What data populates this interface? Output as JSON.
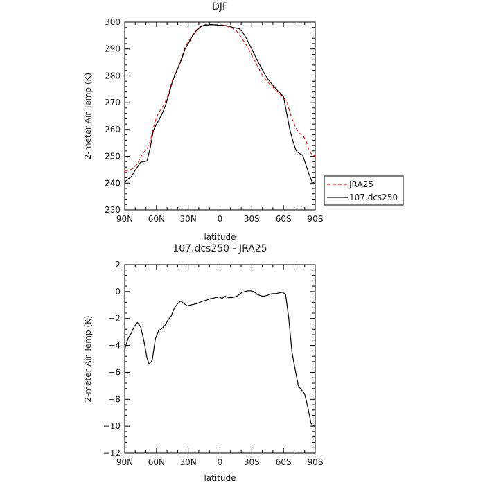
{
  "chart_data": [
    {
      "type": "line",
      "title": "DJF",
      "xlabel": "latitude",
      "ylabel": "2-meter Air Temp (K)",
      "xlim": [
        90,
        -90
      ],
      "ylim": [
        230,
        300
      ],
      "x_ticks": [
        90,
        60,
        30,
        0,
        -30,
        -60,
        -90
      ],
      "x_tick_labels": [
        "90N",
        "60N",
        "30N",
        "0",
        "30S",
        "60S",
        "90S"
      ],
      "y_ticks": [
        230,
        240,
        250,
        260,
        270,
        280,
        290,
        300
      ],
      "y_tick_labels": [
        "230",
        "240",
        "250",
        "260",
        "270",
        "280",
        "290",
        "300"
      ],
      "grid": false,
      "legend_position": "right",
      "series": [
        {
          "name": "JRA25",
          "color": "#e8231c",
          "dash": "dashed",
          "x": [
            90,
            85,
            82,
            78,
            75,
            72,
            69,
            66,
            63,
            60,
            57,
            54,
            51,
            48,
            45,
            42,
            39,
            36,
            33,
            30,
            27,
            24,
            21,
            18,
            15,
            12,
            9,
            6,
            3,
            0,
            -3,
            -6,
            -9,
            -12,
            -15,
            -18,
            -21,
            -24,
            -27,
            -30,
            -33,
            -36,
            -39,
            -42,
            -45,
            -48,
            -51,
            -54,
            -57,
            -60,
            -63,
            -66,
            -69,
            -72,
            -75,
            -78,
            -81,
            -84,
            -87,
            -90
          ],
          "y": [
            244.6,
            244.9,
            245.5,
            247.2,
            249.7,
            251.5,
            252.8,
            255.5,
            260.5,
            264.5,
            266.8,
            268.5,
            270.8,
            274.2,
            278.5,
            281.2,
            283.8,
            287.0,
            290.5,
            292.6,
            294.6,
            296.3,
            297.6,
            298.5,
            299.0,
            299.1,
            299.1,
            299.1,
            299.0,
            299.0,
            298.9,
            298.5,
            298.1,
            297.8,
            297.0,
            295.5,
            293.8,
            292.0,
            290.0,
            287.8,
            285.5,
            283.2,
            281.0,
            279.2,
            277.7,
            276.5,
            275.3,
            274.2,
            273.0,
            272.0,
            270.5,
            266.5,
            263.0,
            260.5,
            258.5,
            258.0,
            256.0,
            252.5,
            250.5,
            250.2
          ]
        },
        {
          "name": "107.dcs250",
          "color": "#000000",
          "dash": "solid",
          "x": [
            90,
            87,
            84,
            81,
            78,
            75,
            72,
            69,
            66,
            63,
            60,
            57,
            54,
            51,
            48,
            45,
            42,
            39,
            36,
            33,
            30,
            27,
            24,
            21,
            18,
            15,
            12,
            9,
            6,
            3,
            0,
            -3,
            -6,
            -9,
            -12,
            -15,
            -18,
            -21,
            -24,
            -27,
            -30,
            -33,
            -36,
            -39,
            -42,
            -45,
            -48,
            -51,
            -54,
            -57,
            -60,
            -63,
            -66,
            -69,
            -72,
            -75,
            -78,
            -81,
            -84,
            -87,
            -90
          ],
          "y": [
            240.4,
            241.5,
            242.3,
            244.2,
            246.0,
            247.8,
            248.0,
            248.2,
            253.0,
            259.5,
            262.0,
            264.0,
            266.5,
            269.5,
            273.5,
            277.8,
            280.8,
            283.5,
            286.5,
            290.0,
            292.0,
            294.2,
            296.0,
            297.3,
            298.3,
            298.8,
            298.9,
            299.0,
            299.0,
            298.9,
            298.8,
            298.7,
            298.7,
            298.4,
            298.0,
            297.8,
            297.6,
            296.5,
            294.6,
            292.3,
            290.0,
            287.6,
            285.2,
            283.0,
            280.8,
            278.9,
            277.4,
            276.0,
            274.7,
            273.5,
            272.3,
            266.0,
            260.0,
            255.5,
            252.0,
            251.0,
            250.5,
            247.0,
            243.5,
            240.5,
            239.8
          ]
        }
      ]
    },
    {
      "type": "line",
      "title": "107.dcs250 - JRA25",
      "xlabel": "latitude",
      "ylabel": "2-meter Air Temp (K)",
      "xlim": [
        90,
        -90
      ],
      "ylim": [
        -12,
        2
      ],
      "x_ticks": [
        90,
        60,
        30,
        0,
        -30,
        -60,
        -90
      ],
      "x_tick_labels": [
        "90N",
        "60N",
        "30N",
        "0",
        "30S",
        "60S",
        "90S"
      ],
      "y_ticks": [
        -12,
        -10,
        -8,
        -6,
        -4,
        -2,
        0,
        2
      ],
      "y_tick_labels": [
        "−12",
        "−10",
        "−8",
        "−6",
        "−4",
        "−2",
        "0",
        "2"
      ],
      "grid": false,
      "series": [
        {
          "color": "#000000",
          "dash": "solid",
          "x": [
            90,
            87,
            84,
            81,
            78,
            75,
            72,
            69,
            67,
            64,
            61,
            58,
            55,
            52,
            49,
            46,
            43,
            40,
            37,
            34,
            31,
            28,
            25,
            22,
            19,
            16,
            13,
            10,
            7,
            4,
            1,
            -2,
            -5,
            -8,
            -11,
            -14,
            -17,
            -20,
            -23,
            -26,
            -29,
            -32,
            -35,
            -38,
            -41,
            -44,
            -47,
            -50,
            -53,
            -56,
            -59,
            -62,
            -65,
            -68,
            -71,
            -74,
            -77,
            -80,
            -83,
            -86,
            -89,
            -90
          ],
          "y": [
            -4.3,
            -3.5,
            -3.1,
            -2.6,
            -2.3,
            -2.6,
            -3.6,
            -4.9,
            -5.4,
            -5.1,
            -3.5,
            -2.9,
            -2.75,
            -2.5,
            -2.1,
            -1.8,
            -1.2,
            -0.9,
            -0.7,
            -0.9,
            -1.05,
            -1.0,
            -0.95,
            -0.9,
            -0.8,
            -0.7,
            -0.65,
            -0.55,
            -0.5,
            -0.45,
            -0.4,
            -0.5,
            -0.35,
            -0.45,
            -0.45,
            -0.4,
            -0.3,
            -0.1,
            0.0,
            0.05,
            0.05,
            0.0,
            -0.2,
            -0.3,
            -0.35,
            -0.3,
            -0.2,
            -0.15,
            -0.15,
            -0.1,
            -0.05,
            -0.2,
            -2.0,
            -4.5,
            -5.8,
            -7.0,
            -7.3,
            -7.6,
            -8.6,
            -9.8,
            -10.0,
            -10.0
          ]
        }
      ]
    }
  ]
}
